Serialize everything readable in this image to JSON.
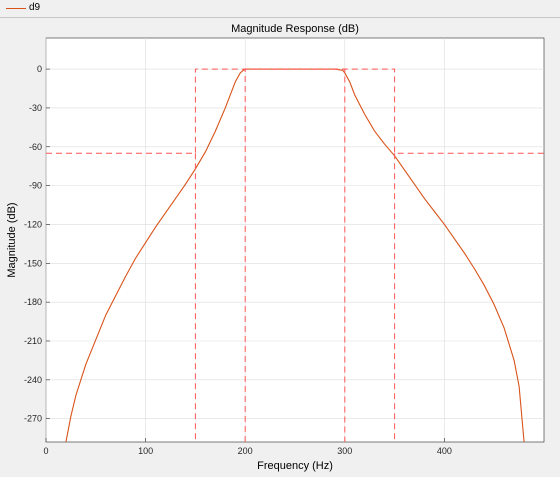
{
  "legend": {
    "label": "d9",
    "color": "#d95319"
  },
  "chart_data": {
    "type": "line",
    "title": "Magnitude Response (dB)",
    "xlabel": "Frequency (Hz)",
    "ylabel": "Magnitude (dB)",
    "xlim": [
      0,
      500
    ],
    "ylim": [
      -288,
      24
    ],
    "xticks": [
      0,
      100,
      200,
      300,
      400
    ],
    "yticks": [
      0,
      -30,
      -60,
      -90,
      -120,
      -150,
      -180,
      -210,
      -240,
      -270
    ],
    "grid": true,
    "series": [
      {
        "name": "d9",
        "color": "#d95319",
        "style": "solid",
        "x": [
          20,
          25,
          30,
          40,
          50,
          60,
          70,
          80,
          90,
          100,
          110,
          120,
          130,
          140,
          150,
          160,
          170,
          180,
          185,
          190,
          195,
          198,
          200,
          210,
          220,
          230,
          240,
          250,
          260,
          270,
          280,
          290,
          298,
          300,
          305,
          310,
          320,
          330,
          340,
          350,
          360,
          370,
          380,
          390,
          400,
          410,
          420,
          430,
          440,
          450,
          460,
          470,
          475,
          480
        ],
        "y": [
          -288,
          -268,
          -252,
          -228,
          -209,
          -190,
          -175,
          -160,
          -146,
          -134,
          -122,
          -111,
          -100,
          -89,
          -77,
          -64,
          -48,
          -30,
          -20,
          -10,
          -3,
          -1,
          0,
          0,
          0,
          0,
          0,
          0,
          0,
          0,
          0,
          0,
          -1,
          -3,
          -10,
          -20,
          -35,
          -48,
          -58,
          -67,
          -78,
          -89,
          -100,
          -110,
          -120,
          -131,
          -142,
          -154,
          -167,
          -182,
          -200,
          -225,
          -245,
          -288
        ]
      },
      {
        "name": "",
        "color": "#ff5555",
        "style": "dashed",
        "x": [
          0,
          150,
          150,
          350,
          350,
          500
        ],
        "y": [
          -65,
          -65,
          0,
          0,
          -65,
          -65
        ],
        "role": "stopband-mask"
      },
      {
        "name": "",
        "color": "#ff5555",
        "style": "dashed",
        "x": [
          200,
          200,
          300,
          300
        ],
        "y": [
          -288,
          0,
          0,
          -288
        ],
        "role": "passband-mask"
      },
      {
        "name": "",
        "color": "#ff5555",
        "style": "dashed",
        "x": [
          150,
          150
        ],
        "y": [
          -65,
          -288
        ],
        "role": "transition-edge-left"
      },
      {
        "name": "",
        "color": "#ff5555",
        "style": "dashed",
        "x": [
          350,
          350
        ],
        "y": [
          -65,
          -288
        ],
        "role": "transition-edge-right"
      },
      {
        "name": "",
        "color": "#ff5555",
        "style": "dashed",
        "x": [
          200,
          200,
          300,
          300
        ],
        "y": [
          -65,
          -288,
          -288,
          -65
        ],
        "role": "inner-stop-left"
      }
    ]
  }
}
